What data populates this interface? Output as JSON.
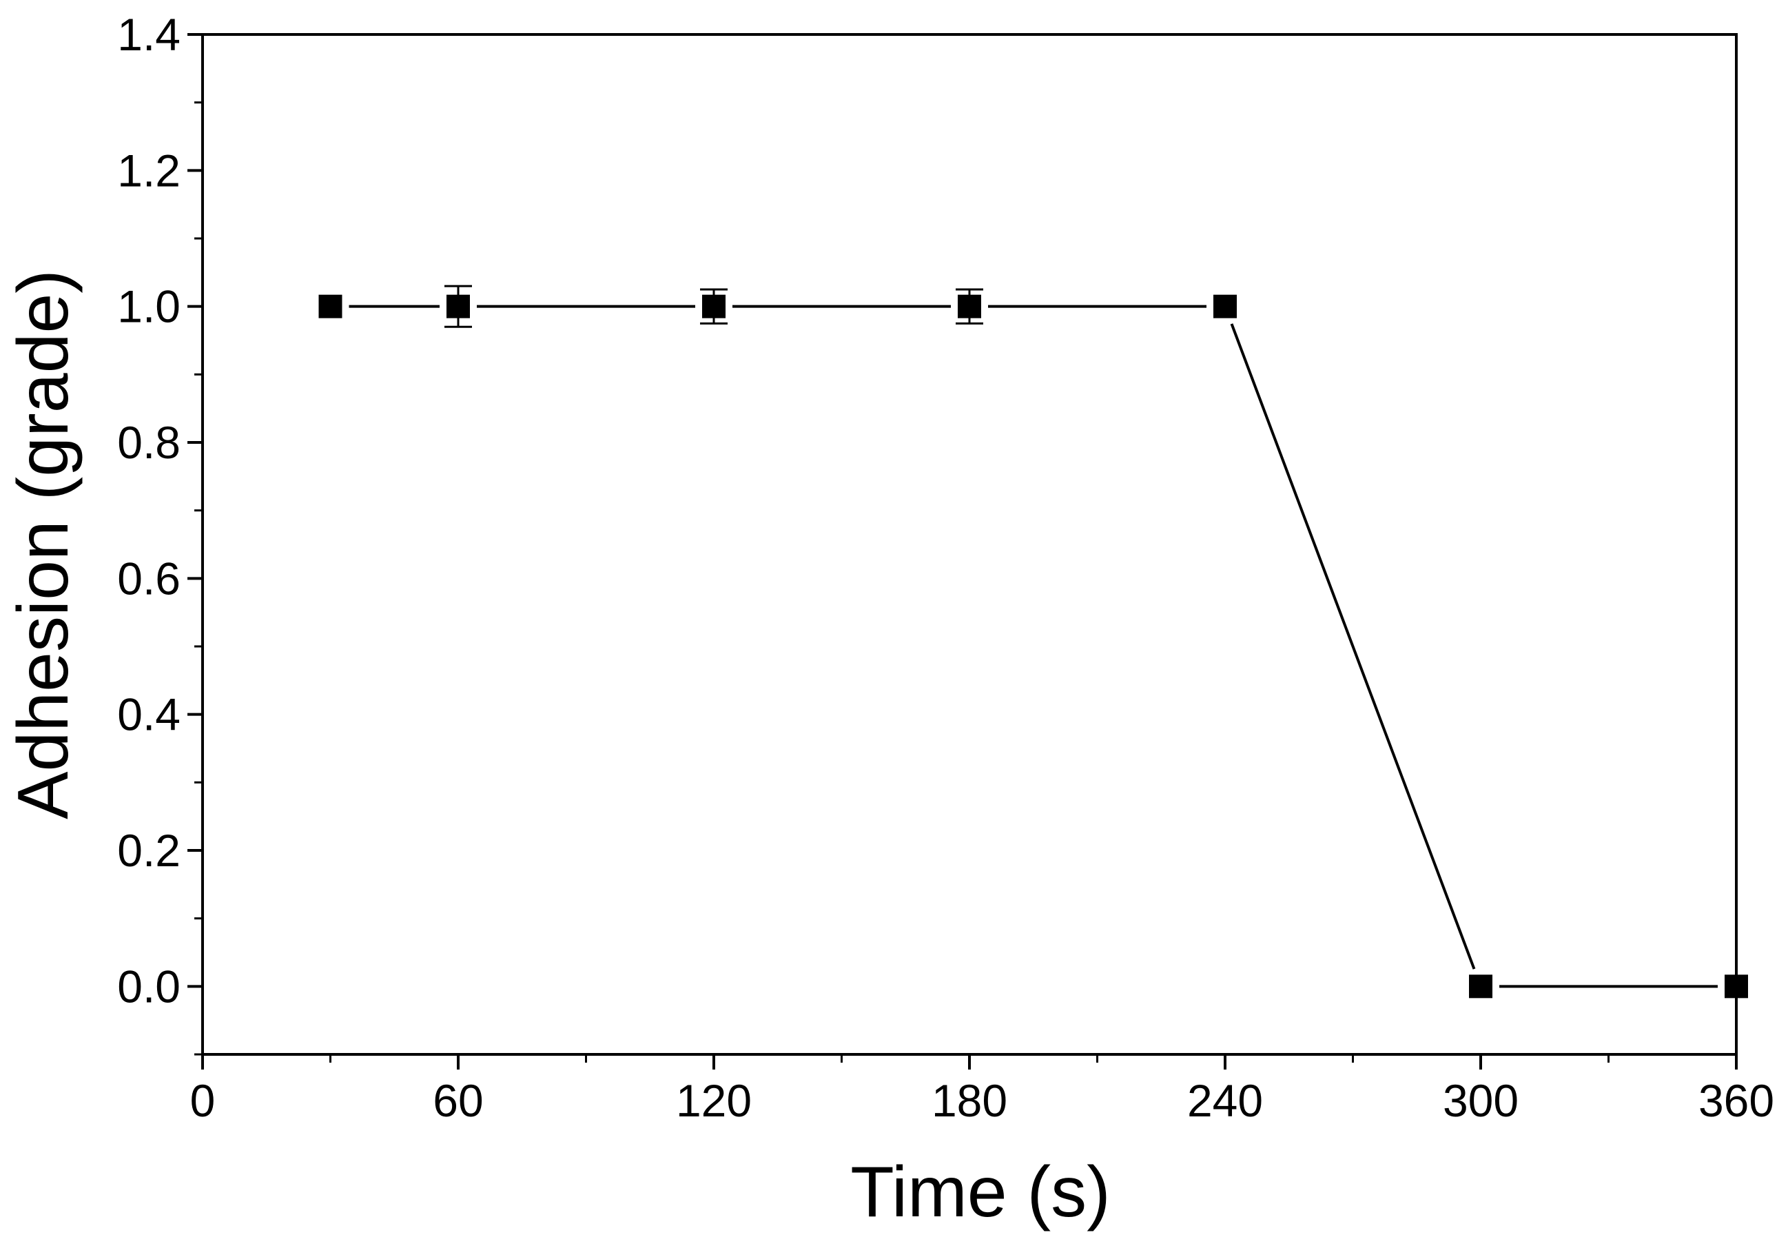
{
  "chart_data": {
    "type": "line",
    "title": "",
    "xlabel": "Time (s)",
    "ylabel": "Adhesion (grade)",
    "xlim": [
      0,
      360
    ],
    "ylim": [
      -0.1,
      1.4
    ],
    "x_ticks": [
      0,
      60,
      120,
      180,
      240,
      300,
      360
    ],
    "x_tick_labels": [
      "0",
      "60",
      "120",
      "180",
      "240",
      "300",
      "360"
    ],
    "x_minor_step": 30,
    "y_ticks": [
      0.0,
      0.2,
      0.4,
      0.6,
      0.8,
      1.0,
      1.2,
      1.4
    ],
    "y_tick_labels": [
      "0.0",
      "0.2",
      "0.4",
      "0.6",
      "0.8",
      "1.0",
      "1.2",
      "1.4"
    ],
    "y_minor_step": 0.1,
    "grid": false,
    "legend": "none",
    "series": [
      {
        "name": "Adhesion",
        "marker": "square",
        "color": "#000000",
        "x": [
          30,
          60,
          120,
          180,
          240,
          300,
          360
        ],
        "y": [
          1.0,
          1.0,
          1.0,
          1.0,
          1.0,
          0.0,
          0.0
        ],
        "error": [
          0.0,
          0.03,
          0.025,
          0.025,
          0.0,
          0.0,
          0.0
        ]
      }
    ]
  }
}
